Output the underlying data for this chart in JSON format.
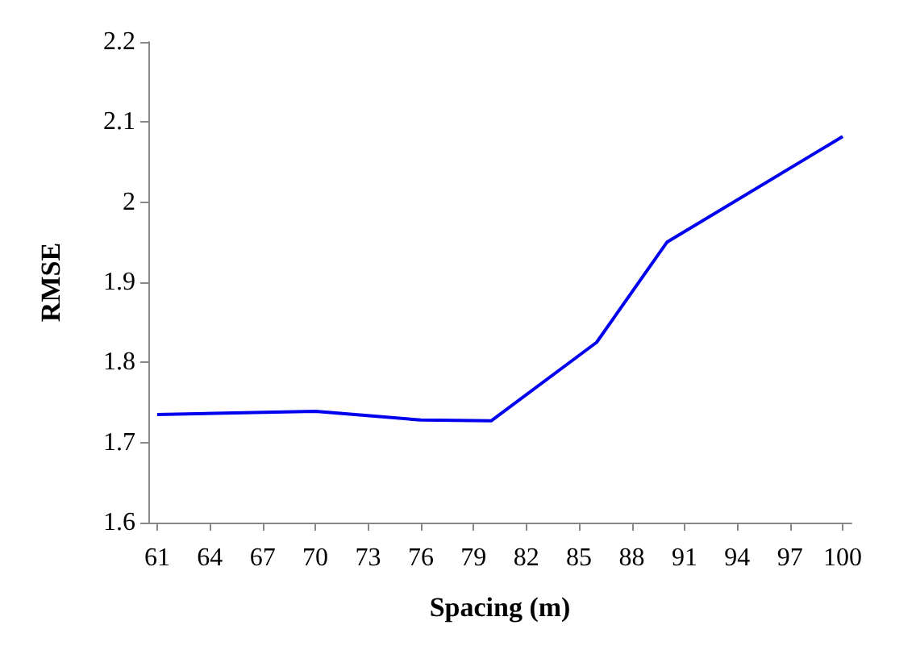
{
  "chart_data": {
    "type": "line",
    "xlabel": "Spacing (m)",
    "ylabel": "RMSE",
    "x": [
      61,
      70,
      76,
      80,
      86,
      90,
      100
    ],
    "series": [
      {
        "color": "#0000ee",
        "values": [
          1.735,
          1.739,
          1.728,
          1.727,
          1.825,
          1.95,
          2.082
        ]
      }
    ],
    "xlim": [
      60.5,
      100.5
    ],
    "xticks": [
      61,
      64,
      67,
      70,
      73,
      76,
      79,
      82,
      85,
      88,
      91,
      94,
      97,
      100
    ],
    "ylim": [
      1.6,
      2.2
    ],
    "yticks": [
      1.6,
      1.7,
      1.8,
      1.9,
      2,
      2.1,
      2.2
    ],
    "grid": false,
    "marker": "none",
    "line_style": "solid"
  }
}
